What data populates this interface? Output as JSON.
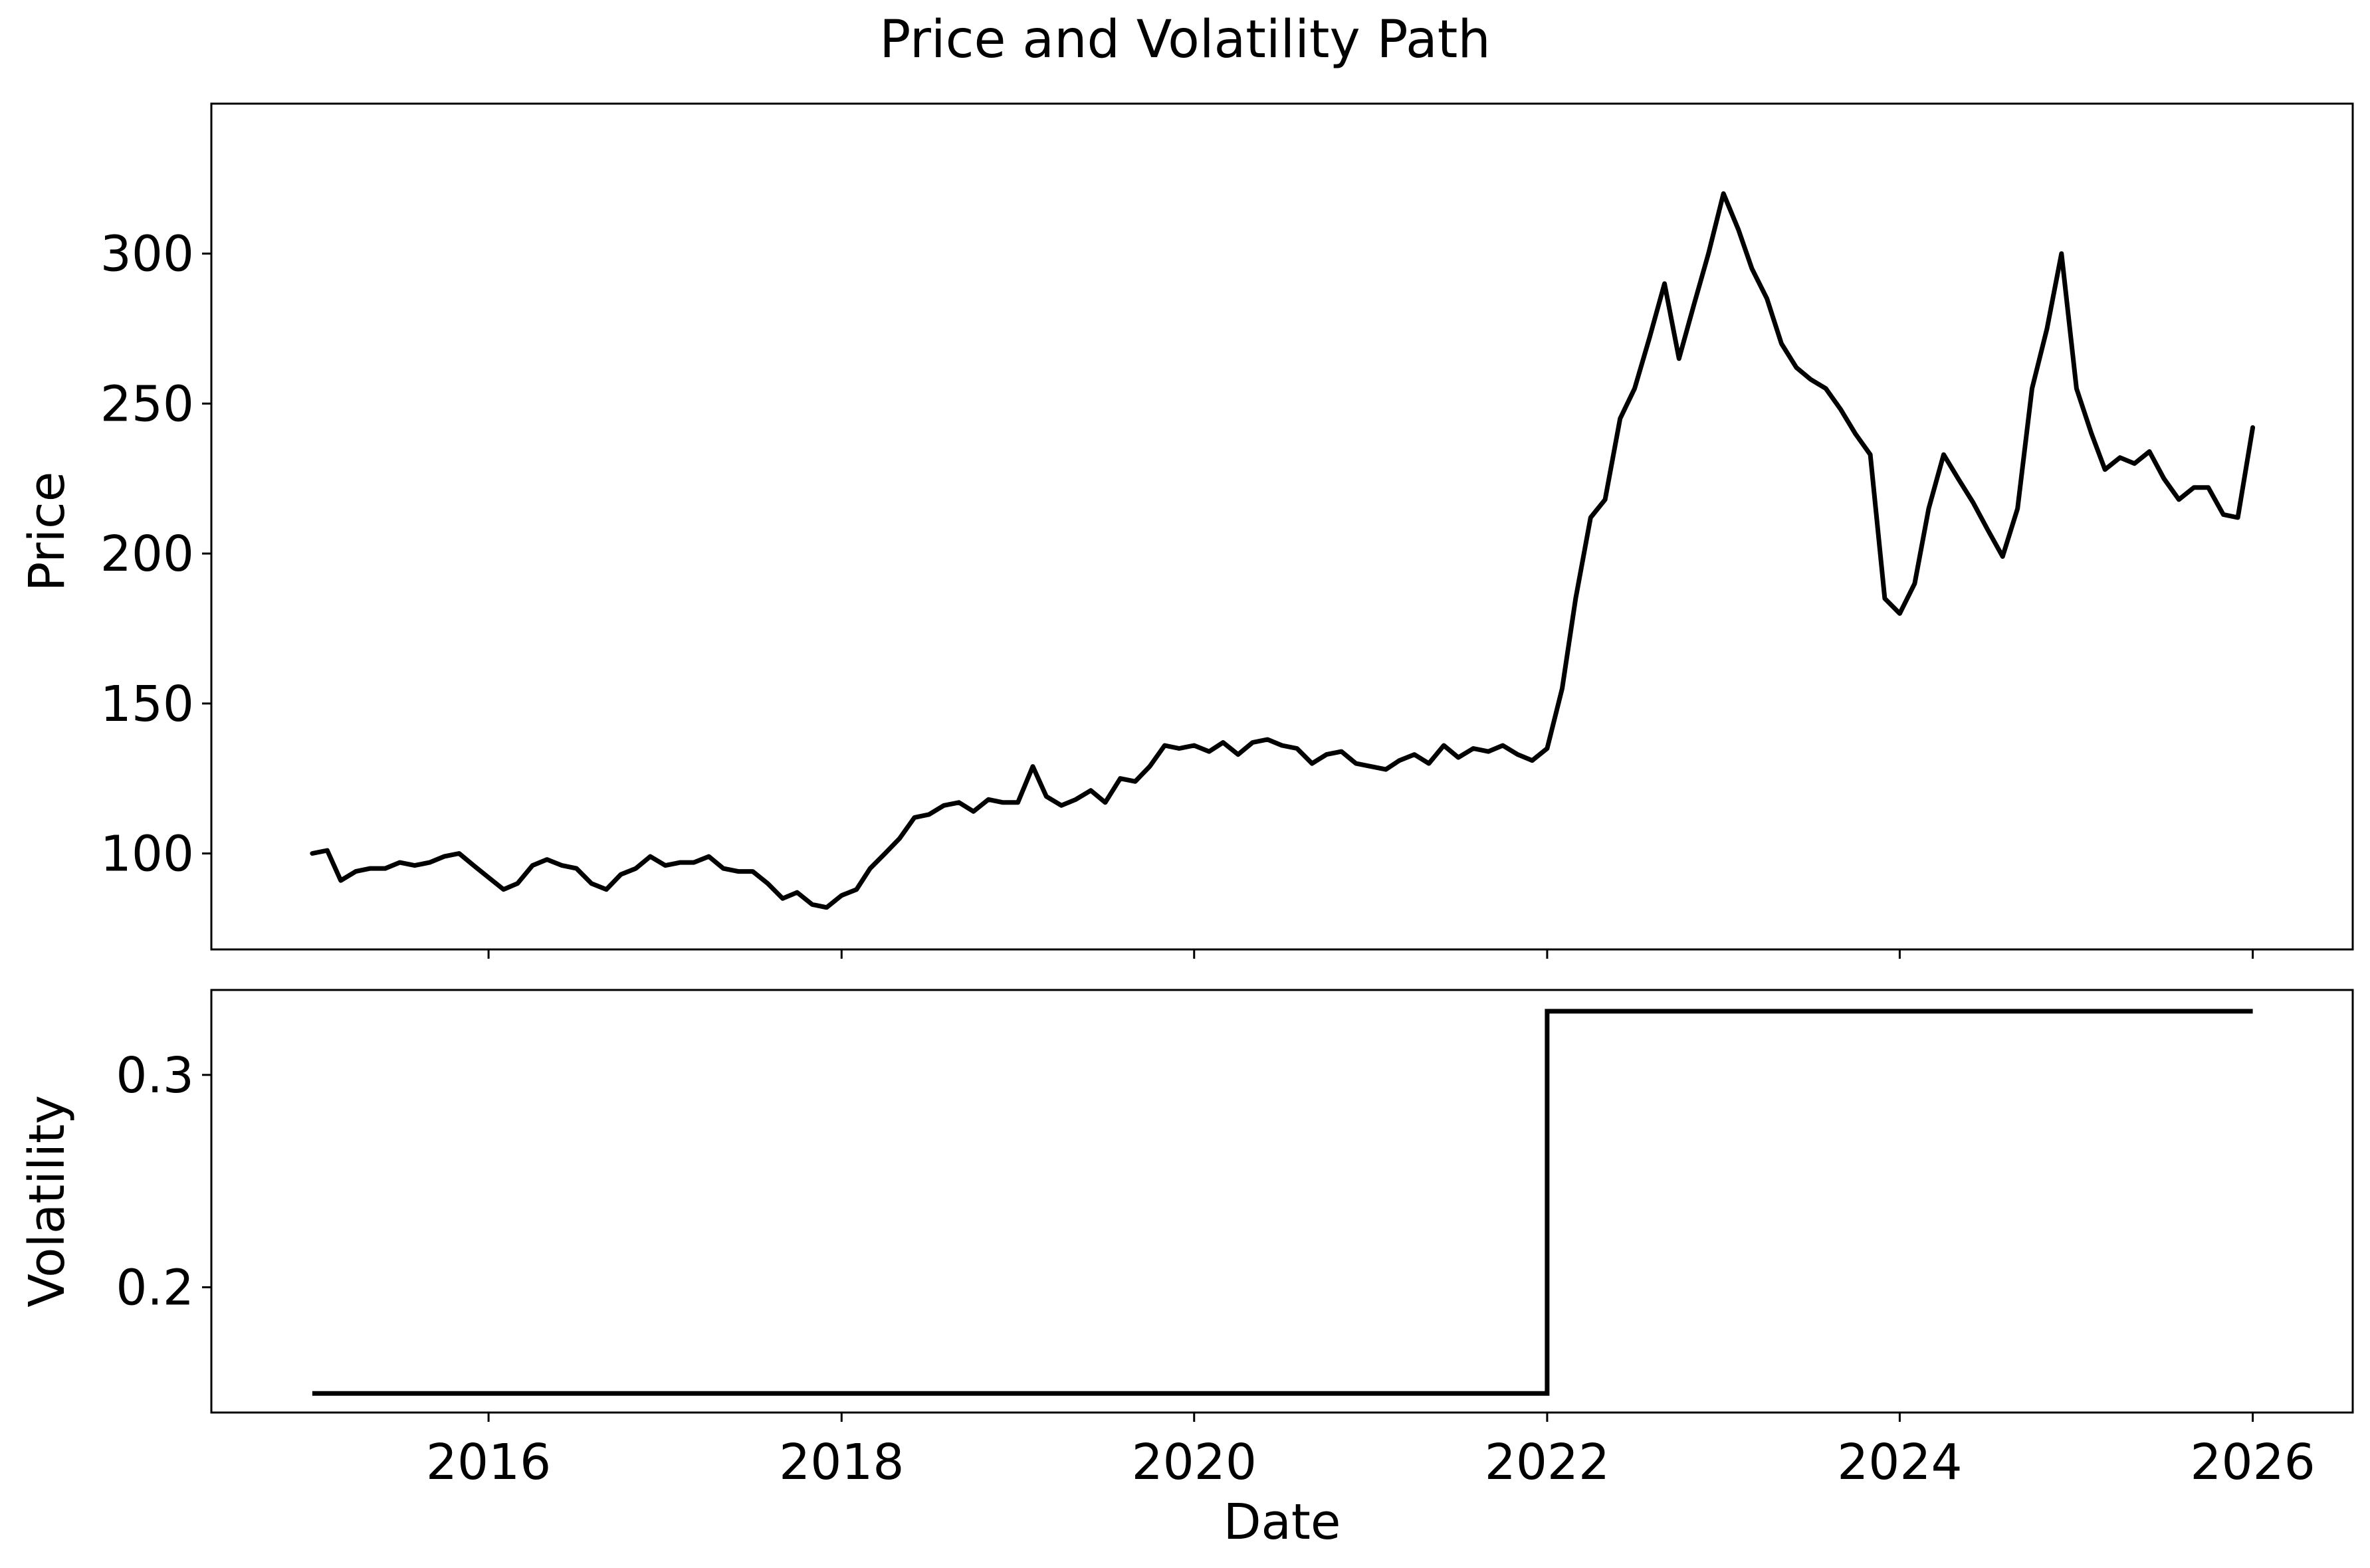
{
  "figure": {
    "title": "Price and Volatility Path"
  },
  "chart_data": [
    {
      "type": "line",
      "panel": "top",
      "title": "",
      "xlabel": "",
      "ylabel": "Price",
      "xlim": [
        "2014-06-06",
        "2026-07-27"
      ],
      "ylim": [
        68,
        350
      ],
      "x_ticks": [
        "2016-01-01",
        "2018-01-01",
        "2020-01-01",
        "2022-01-01",
        "2024-01-01",
        "2026-01-01"
      ],
      "x_tick_labels_visible": false,
      "y_ticks": [
        100,
        150,
        200,
        250,
        300
      ],
      "y_tick_labels": [
        "100",
        "150",
        "200",
        "250",
        "300"
      ],
      "grid": false,
      "line_color": "#000000",
      "series": [
        {
          "x": [
            "2015-01-01",
            "2015-02-01",
            "2015-03-01",
            "2015-04-01",
            "2015-05-01",
            "2015-06-01",
            "2015-07-01",
            "2015-08-01",
            "2015-09-01",
            "2015-10-01",
            "2015-11-01",
            "2015-12-01",
            "2016-01-01",
            "2016-02-01",
            "2016-03-01",
            "2016-04-01",
            "2016-05-01",
            "2016-06-01",
            "2016-07-01",
            "2016-08-01",
            "2016-09-01",
            "2016-10-01",
            "2016-11-01",
            "2016-12-01",
            "2017-01-01",
            "2017-02-01",
            "2017-03-01",
            "2017-04-01",
            "2017-05-01",
            "2017-06-01",
            "2017-07-01",
            "2017-08-01",
            "2017-09-01",
            "2017-10-01",
            "2017-11-01",
            "2017-12-01",
            "2018-01-01",
            "2018-02-01",
            "2018-03-01",
            "2018-04-01",
            "2018-05-01",
            "2018-06-01",
            "2018-07-01",
            "2018-08-01",
            "2018-09-01",
            "2018-10-01",
            "2018-11-01",
            "2018-12-01",
            "2019-01-01",
            "2019-02-01",
            "2019-03-01",
            "2019-04-01",
            "2019-05-01",
            "2019-06-01",
            "2019-07-01",
            "2019-08-01",
            "2019-09-01",
            "2019-10-01",
            "2019-11-01",
            "2019-12-01",
            "2020-01-01",
            "2020-02-01",
            "2020-03-01",
            "2020-04-01",
            "2020-05-01",
            "2020-06-01",
            "2020-07-01",
            "2020-08-01",
            "2020-09-01",
            "2020-10-01",
            "2020-11-01",
            "2020-12-01",
            "2021-01-01",
            "2021-02-01",
            "2021-03-01",
            "2021-04-01",
            "2021-05-01",
            "2021-06-01",
            "2021-07-01",
            "2021-08-01",
            "2021-09-01",
            "2021-10-01",
            "2021-11-01",
            "2021-12-01",
            "2022-01-01",
            "2022-02-01",
            "2022-03-01",
            "2022-04-01",
            "2022-05-01",
            "2022-06-01",
            "2022-07-01",
            "2022-08-01",
            "2022-09-01",
            "2022-10-01",
            "2022-11-01",
            "2022-12-01",
            "2023-01-01",
            "2023-02-01",
            "2023-03-01",
            "2023-04-01",
            "2023-05-01",
            "2023-06-01",
            "2023-07-01",
            "2023-08-01",
            "2023-09-01",
            "2023-10-01",
            "2023-11-01",
            "2023-12-01",
            "2024-01-01",
            "2024-02-01",
            "2024-03-01",
            "2024-04-01",
            "2024-05-01",
            "2024-06-01",
            "2024-07-01",
            "2024-08-01",
            "2024-09-01",
            "2024-10-01",
            "2024-11-01",
            "2024-12-01",
            "2025-01-01",
            "2025-02-01",
            "2025-03-01",
            "2025-04-01",
            "2025-05-01",
            "2025-06-01",
            "2025-07-01",
            "2025-08-01",
            "2025-09-01",
            "2025-10-01",
            "2025-11-01",
            "2025-12-01",
            "2026-01-01"
          ],
          "y": [
            100,
            101,
            91,
            94,
            95,
            95,
            97,
            96,
            97,
            99,
            100,
            96,
            92,
            88,
            90,
            96,
            98,
            96,
            95,
            90,
            88,
            93,
            95,
            99,
            96,
            97,
            97,
            99,
            95,
            94,
            94,
            90,
            85,
            87,
            83,
            82,
            86,
            88,
            95,
            100,
            105,
            112,
            113,
            116,
            117,
            114,
            118,
            117,
            117,
            129,
            119,
            116,
            118,
            121,
            117,
            125,
            124,
            129,
            136,
            135,
            136,
            134,
            137,
            133,
            137,
            138,
            136,
            135,
            130,
            133,
            134,
            130,
            129,
            128,
            131,
            133,
            130,
            136,
            132,
            135,
            134,
            136,
            133,
            131,
            135,
            155,
            185,
            212,
            218,
            245,
            255,
            272,
            290,
            265,
            283,
            300,
            320,
            308,
            295,
            285,
            270,
            262,
            258,
            255,
            248,
            240,
            233,
            185,
            180,
            190,
            215,
            233,
            225,
            217,
            208,
            199,
            215,
            255,
            275,
            300,
            255,
            240,
            228,
            232,
            230,
            234,
            225,
            218,
            222,
            222,
            213,
            212,
            242
          ]
        }
      ]
    },
    {
      "type": "line",
      "panel": "bottom",
      "title": "",
      "xlabel": "Date",
      "ylabel": "Volatility",
      "xlim": [
        "2014-06-06",
        "2026-07-27"
      ],
      "ylim": [
        0.141,
        0.34
      ],
      "x_ticks": [
        "2016-01-01",
        "2018-01-01",
        "2020-01-01",
        "2022-01-01",
        "2024-01-01",
        "2026-01-01"
      ],
      "x_tick_labels": [
        "2016",
        "2018",
        "2020",
        "2022",
        "2024",
        "2026"
      ],
      "y_ticks": [
        0.2,
        0.3
      ],
      "y_tick_labels": [
        "0.2",
        "0.3"
      ],
      "grid": false,
      "line_color": "#000000",
      "step": true,
      "series": [
        {
          "x": [
            "2015-01-01",
            "2022-01-01",
            "2022-01-01",
            "2026-01-01"
          ],
          "y": [
            0.15,
            0.15,
            0.33,
            0.33
          ]
        }
      ]
    }
  ]
}
